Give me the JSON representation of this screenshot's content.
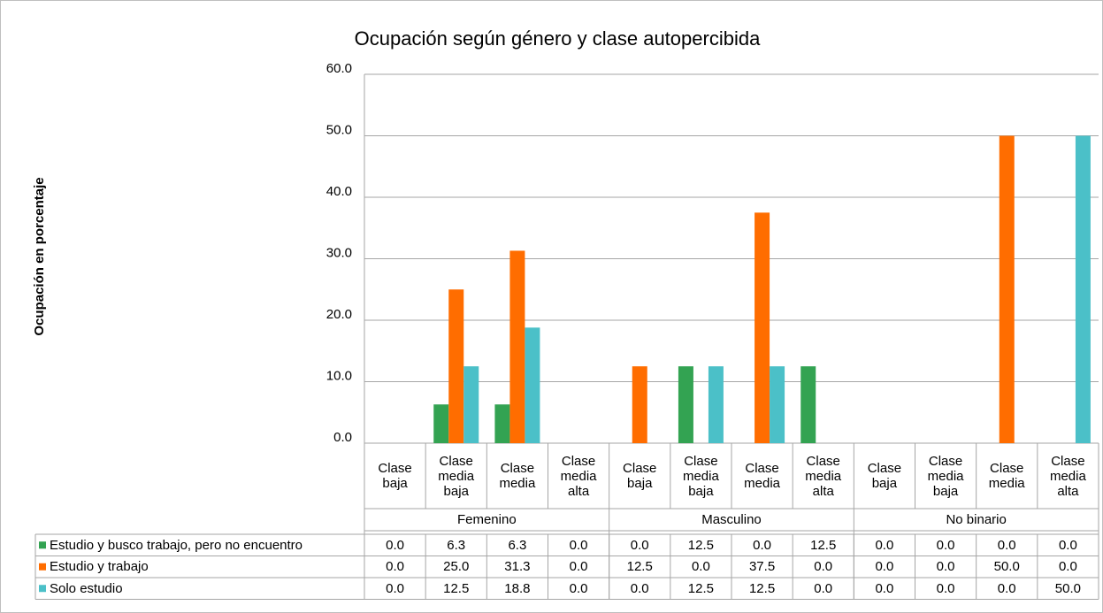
{
  "chart_data": {
    "type": "bar",
    "title": "Ocupación según género y clase autopercibida",
    "y_label": "Ocupación en porcentaje",
    "groups": [
      "Femenino",
      "Masculino",
      "No binario"
    ],
    "categories": [
      "Clase baja",
      "Clase media baja",
      "Clase media",
      "Clase media alta",
      "Clase baja",
      "Clase media baja",
      "Clase media",
      "Clase media alta",
      "Clase baja",
      "Clase media baja",
      "Clase media",
      "Clase media alta"
    ],
    "series": [
      {
        "name": "Estudio y busco trabajo, pero no encuentro",
        "color": "#33a352",
        "values": [
          0,
          6.3,
          6.3,
          0,
          0,
          12.5,
          0,
          12.5,
          0,
          0,
          0,
          0
        ],
        "value_labels": [
          "0.0",
          "6.3",
          "6.3",
          "0.0",
          "0.0",
          "12.5",
          "0.0",
          "12.5",
          "0.0",
          "0.0",
          "0.0",
          "0.0"
        ]
      },
      {
        "name": "Estudio y trabajo",
        "color": "#ff6d00",
        "values": [
          0,
          25,
          31.3,
          0,
          12.5,
          0,
          37.5,
          0,
          0,
          0,
          50,
          0
        ],
        "value_labels": [
          "0.0",
          "25.0",
          "31.3",
          "0.0",
          "12.5",
          "0.0",
          "37.5",
          "0.0",
          "0.0",
          "0.0",
          "50.0",
          "0.0"
        ]
      },
      {
        "name": "Solo estudio",
        "color": "#4bc0c8",
        "values": [
          0,
          12.5,
          18.8,
          0,
          0,
          12.5,
          12.5,
          0,
          0,
          0,
          0,
          50
        ],
        "value_labels": [
          "0.0",
          "12.5",
          "18.8",
          "0.0",
          "0.0",
          "12.5",
          "12.5",
          "0.0",
          "0.0",
          "0.0",
          "0.0",
          "50.0"
        ]
      }
    ],
    "ylim": [
      0,
      60
    ],
    "yticks": [
      {
        "value": 0,
        "label": "0.0"
      },
      {
        "value": 10,
        "label": "10.0"
      },
      {
        "value": 20,
        "label": "20.0"
      },
      {
        "value": 30,
        "label": "30.0"
      },
      {
        "value": 40,
        "label": "40.0"
      },
      {
        "value": 50,
        "label": "50.0"
      },
      {
        "value": 60,
        "label": "60.0"
      }
    ],
    "grid": true
  }
}
